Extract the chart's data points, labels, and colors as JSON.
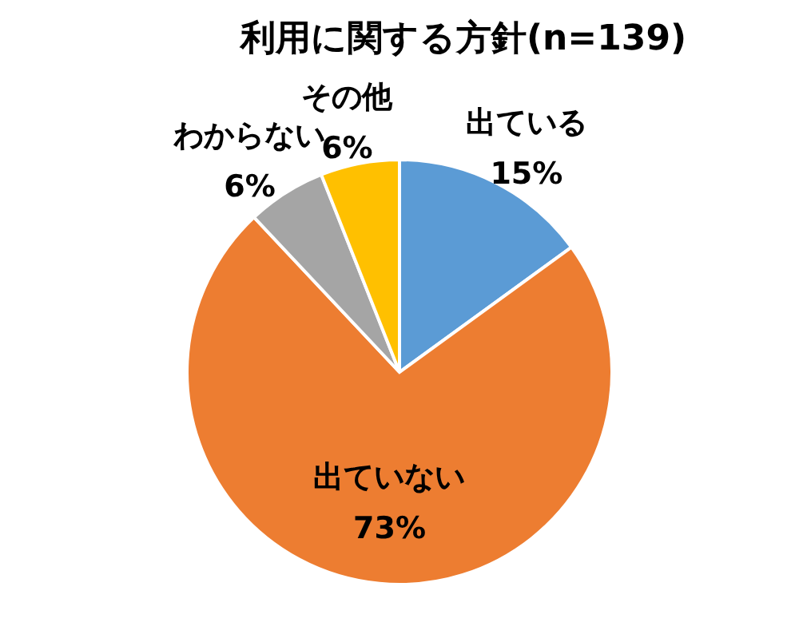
{
  "chart_data": {
    "type": "pie",
    "title": "利用に関する方針(n=139)",
    "categories": [
      "出ている",
      "出ていない",
      "わからない",
      "その他"
    ],
    "values": [
      15,
      73,
      6,
      6
    ],
    "colors": [
      "#5b9bd5",
      "#ed7d31",
      "#a5a5a5",
      "#ffc000"
    ],
    "value_labels": [
      "15%",
      "73%",
      "6%",
      "6%"
    ]
  }
}
